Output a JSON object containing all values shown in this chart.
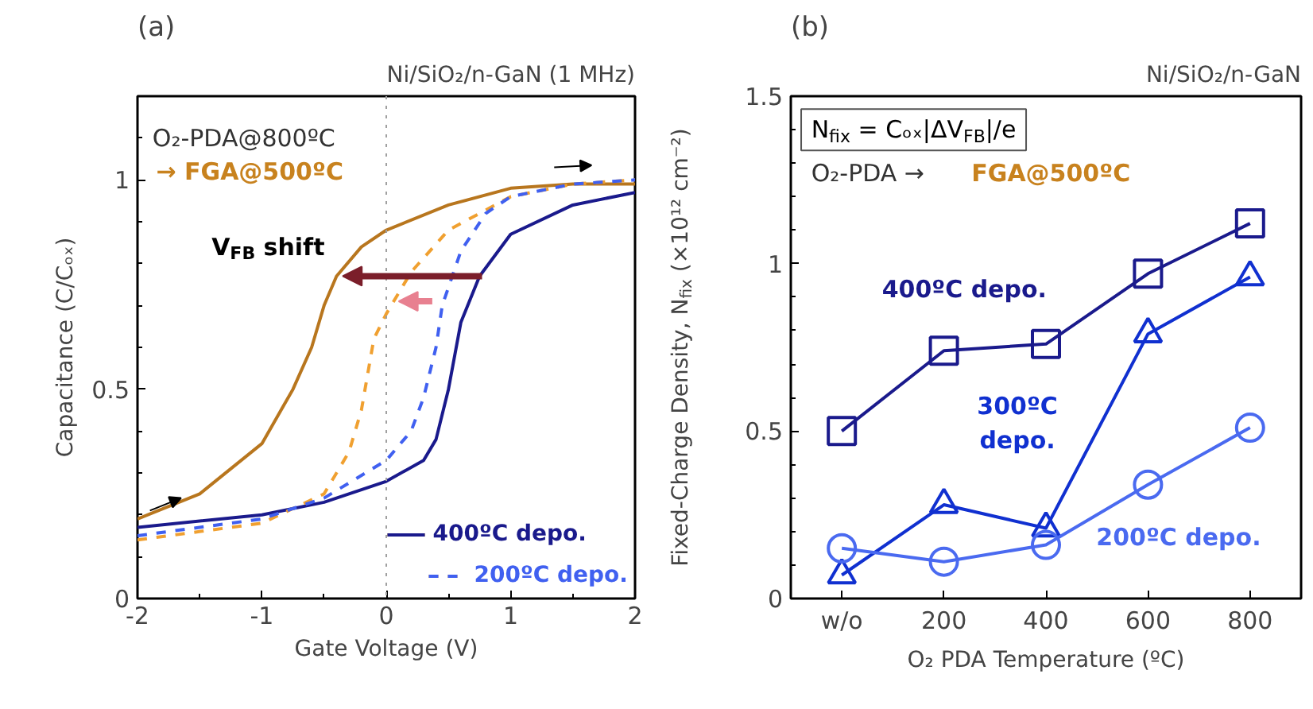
{
  "chart_data": [
    {
      "type": "line",
      "title": "Ni/SiO₂/n-GaN (1 MHz)",
      "subtitle": "(a)",
      "xlabel": "Gate Voltage (V)",
      "ylabel": "Capacitance (C/Cₒₓ)",
      "xlim": [
        -2,
        2
      ],
      "ylim": [
        0,
        1.2
      ],
      "xticks": [
        -2,
        -1,
        0,
        1,
        2
      ],
      "yticks": [
        0,
        0.5,
        1
      ],
      "grid": false,
      "legend": "bottom right",
      "ref_lines": [
        {
          "axis": "x",
          "value": 0,
          "color": "#a0a0a0",
          "line_style": "dotted"
        }
      ],
      "annotations": [
        "O₂-PDA@800ºC",
        "→ FGA@500ºC",
        "V$_{FB}$ shift"
      ],
      "series": [
        {
          "name": "400ºC depo.",
          "color": "#b8761e",
          "line_style": "solid",
          "x": [
            -2,
            -1.5,
            -1,
            -0.75,
            -0.6,
            -0.5,
            -0.4,
            -0.2,
            0,
            0.5,
            1,
            1.5,
            2
          ],
          "values": [
            0.19,
            0.25,
            0.37,
            0.5,
            0.6,
            0.7,
            0.77,
            0.84,
            0.88,
            0.94,
            0.98,
            0.99,
            0.99
          ]
        },
        {
          "name": "400ºC depo.",
          "color": "#1a1a8c",
          "line_style": "solid",
          "x": [
            -2,
            -1,
            -0.5,
            0,
            0.3,
            0.4,
            0.5,
            0.6,
            0.75,
            1,
            1.5,
            2
          ],
          "values": [
            0.17,
            0.2,
            0.23,
            0.28,
            0.33,
            0.38,
            0.5,
            0.66,
            0.77,
            0.87,
            0.94,
            0.97
          ]
        },
        {
          "name": "200ºC depo.",
          "color": "#f0a030",
          "line_style": "dashed",
          "x": [
            -2,
            -1,
            -0.5,
            -0.3,
            -0.2,
            -0.1,
            0,
            0.2,
            0.5,
            1,
            1.5,
            2
          ],
          "values": [
            0.14,
            0.18,
            0.25,
            0.35,
            0.45,
            0.62,
            0.68,
            0.78,
            0.88,
            0.96,
            0.99,
            1.0
          ]
        },
        {
          "name": "200ºC depo.",
          "color": "#4060f0",
          "line_style": "dashed",
          "x": [
            -2,
            -1,
            -0.5,
            0,
            0.2,
            0.3,
            0.4,
            0.45,
            0.6,
            0.8,
            1,
            1.5,
            2
          ],
          "values": [
            0.15,
            0.19,
            0.24,
            0.33,
            0.4,
            0.48,
            0.6,
            0.7,
            0.83,
            0.92,
            0.96,
            0.99,
            1.0
          ]
        }
      ]
    },
    {
      "type": "line",
      "title": "Ni/SiO₂/n-GaN",
      "subtitle": "(b)",
      "xlabel": "O₂ PDA Temperature (ºC)",
      "ylabel": "Fixed-Charge Density, N$_{fix}$ (×10¹² cm⁻²)",
      "categories": [
        "w/o",
        "200",
        "400",
        "600",
        "800"
      ],
      "ylim": [
        0,
        1.5
      ],
      "yticks": [
        0,
        0.5,
        1,
        1.5
      ],
      "grid": false,
      "legend": false,
      "annotations": [
        "N$_{fix}$ = Cₒₓ|ΔV$_{FB}$|/e",
        "O₂-PDA →",
        "FGA@500ºC"
      ],
      "series": [
        {
          "name": "400ºC depo.",
          "color": "#1a1a8c",
          "marker": "square",
          "values": [
            0.5,
            0.74,
            0.76,
            0.97,
            1.12
          ]
        },
        {
          "name": "300ºC depo.",
          "color": "#1030d0",
          "marker": "triangle",
          "values": [
            0.07,
            0.28,
            0.21,
            0.79,
            0.96
          ]
        },
        {
          "name": "200ºC depo.",
          "color": "#4a6af0",
          "marker": "circle",
          "values": [
            0.15,
            0.11,
            0.16,
            0.34,
            0.51
          ]
        }
      ]
    }
  ]
}
